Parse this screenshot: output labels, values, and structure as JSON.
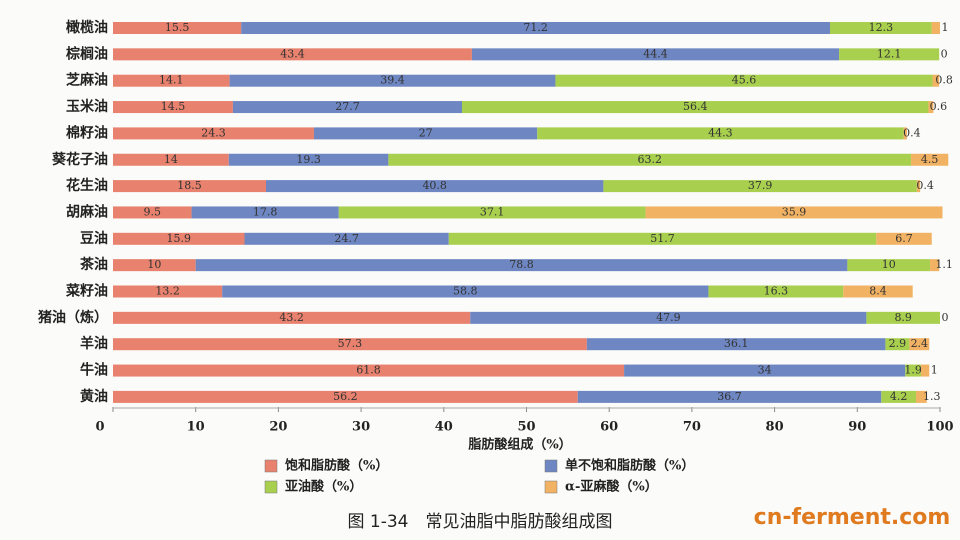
{
  "chart_data": {
    "type": "stacked-bar-horizontal",
    "categories": [
      "橄榄油",
      "棕榈油",
      "芝麻油",
      "玉米油",
      "棉籽油",
      "葵花子油",
      "花生油",
      "胡麻油",
      "豆油",
      "茶油",
      "菜籽油",
      "猪油（炼）",
      "羊油",
      "牛油",
      "黄油"
    ],
    "series": [
      {
        "name": "饱和脂肪酸（%）",
        "color": "#e8816d",
        "values": [
          15.5,
          43.4,
          14.1,
          14.5,
          24.3,
          14,
          18.5,
          9.5,
          15.9,
          10,
          13.2,
          43.2,
          57.3,
          61.8,
          56.2
        ]
      },
      {
        "name": "单不饱和脂肪酸（%）",
        "color": "#6e87c2",
        "values": [
          71.2,
          44.4,
          39.4,
          27.7,
          27,
          19.3,
          40.8,
          17.8,
          24.7,
          78.8,
          58.8,
          47.9,
          36.1,
          34,
          36.7
        ]
      },
      {
        "name": "亚油酸（%）",
        "color": "#a8cf4e",
        "values": [
          12.3,
          12.1,
          45.6,
          56.4,
          44.3,
          63.2,
          37.9,
          37.1,
          51.7,
          10,
          16.3,
          8.9,
          2.9,
          1.9,
          4.2
        ]
      },
      {
        "name": "α-亚麻酸（%）",
        "color": "#f2b263",
        "values": [
          1,
          0,
          0.8,
          0.6,
          0.4,
          4.5,
          0.4,
          35.9,
          6.7,
          1.1,
          8.4,
          0,
          2.4,
          1,
          1.3
        ]
      }
    ],
    "xlim": [
      0,
      100
    ],
    "xticks": [
      0,
      10,
      20,
      30,
      40,
      50,
      60,
      70,
      80,
      90,
      100
    ],
    "x_label": "脂肪酸组成（%）",
    "caption": "图 1-34　常见油脂中脂肪酸组成图",
    "watermark": "cn-ferment.com"
  }
}
